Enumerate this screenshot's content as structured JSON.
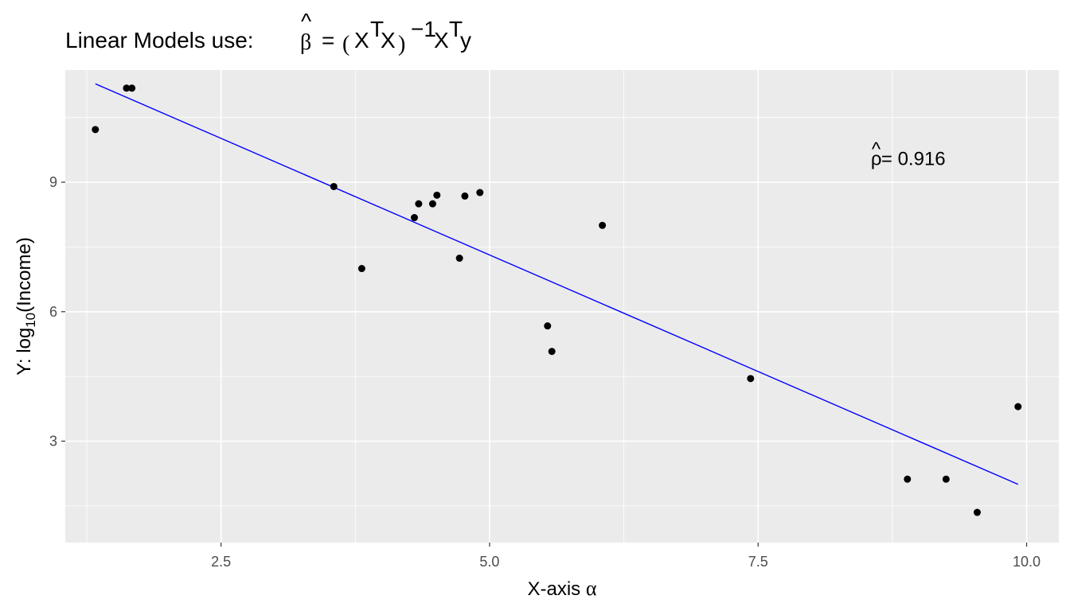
{
  "chart_data": {
    "type": "scatter",
    "title": {
      "prefix": "Linear Models use: ",
      "beta": "β",
      "hat": "^",
      "equals": "=",
      "lparen": "(",
      "x1": "X",
      "t1": "T",
      "x2": "X",
      "rparen": ")",
      "minus_one": "−1",
      "x3": "X",
      "t2": "T",
      "y": "y"
    },
    "xlabel": {
      "text": "X-axis ",
      "alpha": "α"
    },
    "ylabel": {
      "prefix": "Y: log",
      "sub": "10",
      "suffix": "(Income)"
    },
    "xlim": [
      1.05,
      10.3
    ],
    "ylim": [
      0.65,
      11.6
    ],
    "x_ticks": [
      2.5,
      5.0,
      7.5,
      10.0
    ],
    "x_tick_labels": [
      "2.5",
      "5.0",
      "7.5",
      "10.0"
    ],
    "y_ticks": [
      3,
      6,
      9
    ],
    "y_tick_labels": [
      "3",
      "6",
      "9"
    ],
    "grid": true,
    "points": [
      {
        "x": 1.33,
        "y": 10.22
      },
      {
        "x": 1.62,
        "y": 11.18
      },
      {
        "x": 1.67,
        "y": 11.18
      },
      {
        "x": 3.55,
        "y": 8.9
      },
      {
        "x": 3.81,
        "y": 7.0
      },
      {
        "x": 4.3,
        "y": 8.18
      },
      {
        "x": 4.34,
        "y": 8.5
      },
      {
        "x": 4.47,
        "y": 8.5
      },
      {
        "x": 4.51,
        "y": 8.7
      },
      {
        "x": 4.72,
        "y": 7.24
      },
      {
        "x": 4.77,
        "y": 8.68
      },
      {
        "x": 4.91,
        "y": 8.76
      },
      {
        "x": 5.54,
        "y": 5.67
      },
      {
        "x": 5.58,
        "y": 5.08
      },
      {
        "x": 6.05,
        "y": 8.0
      },
      {
        "x": 7.43,
        "y": 4.45
      },
      {
        "x": 8.89,
        "y": 2.12
      },
      {
        "x": 9.25,
        "y": 2.12
      },
      {
        "x": 9.54,
        "y": 1.35
      },
      {
        "x": 9.92,
        "y": 3.8
      }
    ],
    "fit_line": {
      "x": [
        1.33,
        9.92
      ],
      "y": [
        11.28,
        2.0
      ],
      "color": "#0000ff"
    },
    "point_color": "#000000",
    "panel_background": "#ebebeb",
    "grid_color": "#ffffff",
    "annotation": {
      "rho": "ρ",
      "hat": "^",
      "text": " = 0.916",
      "x": 8.55,
      "y": 9.4
    }
  }
}
